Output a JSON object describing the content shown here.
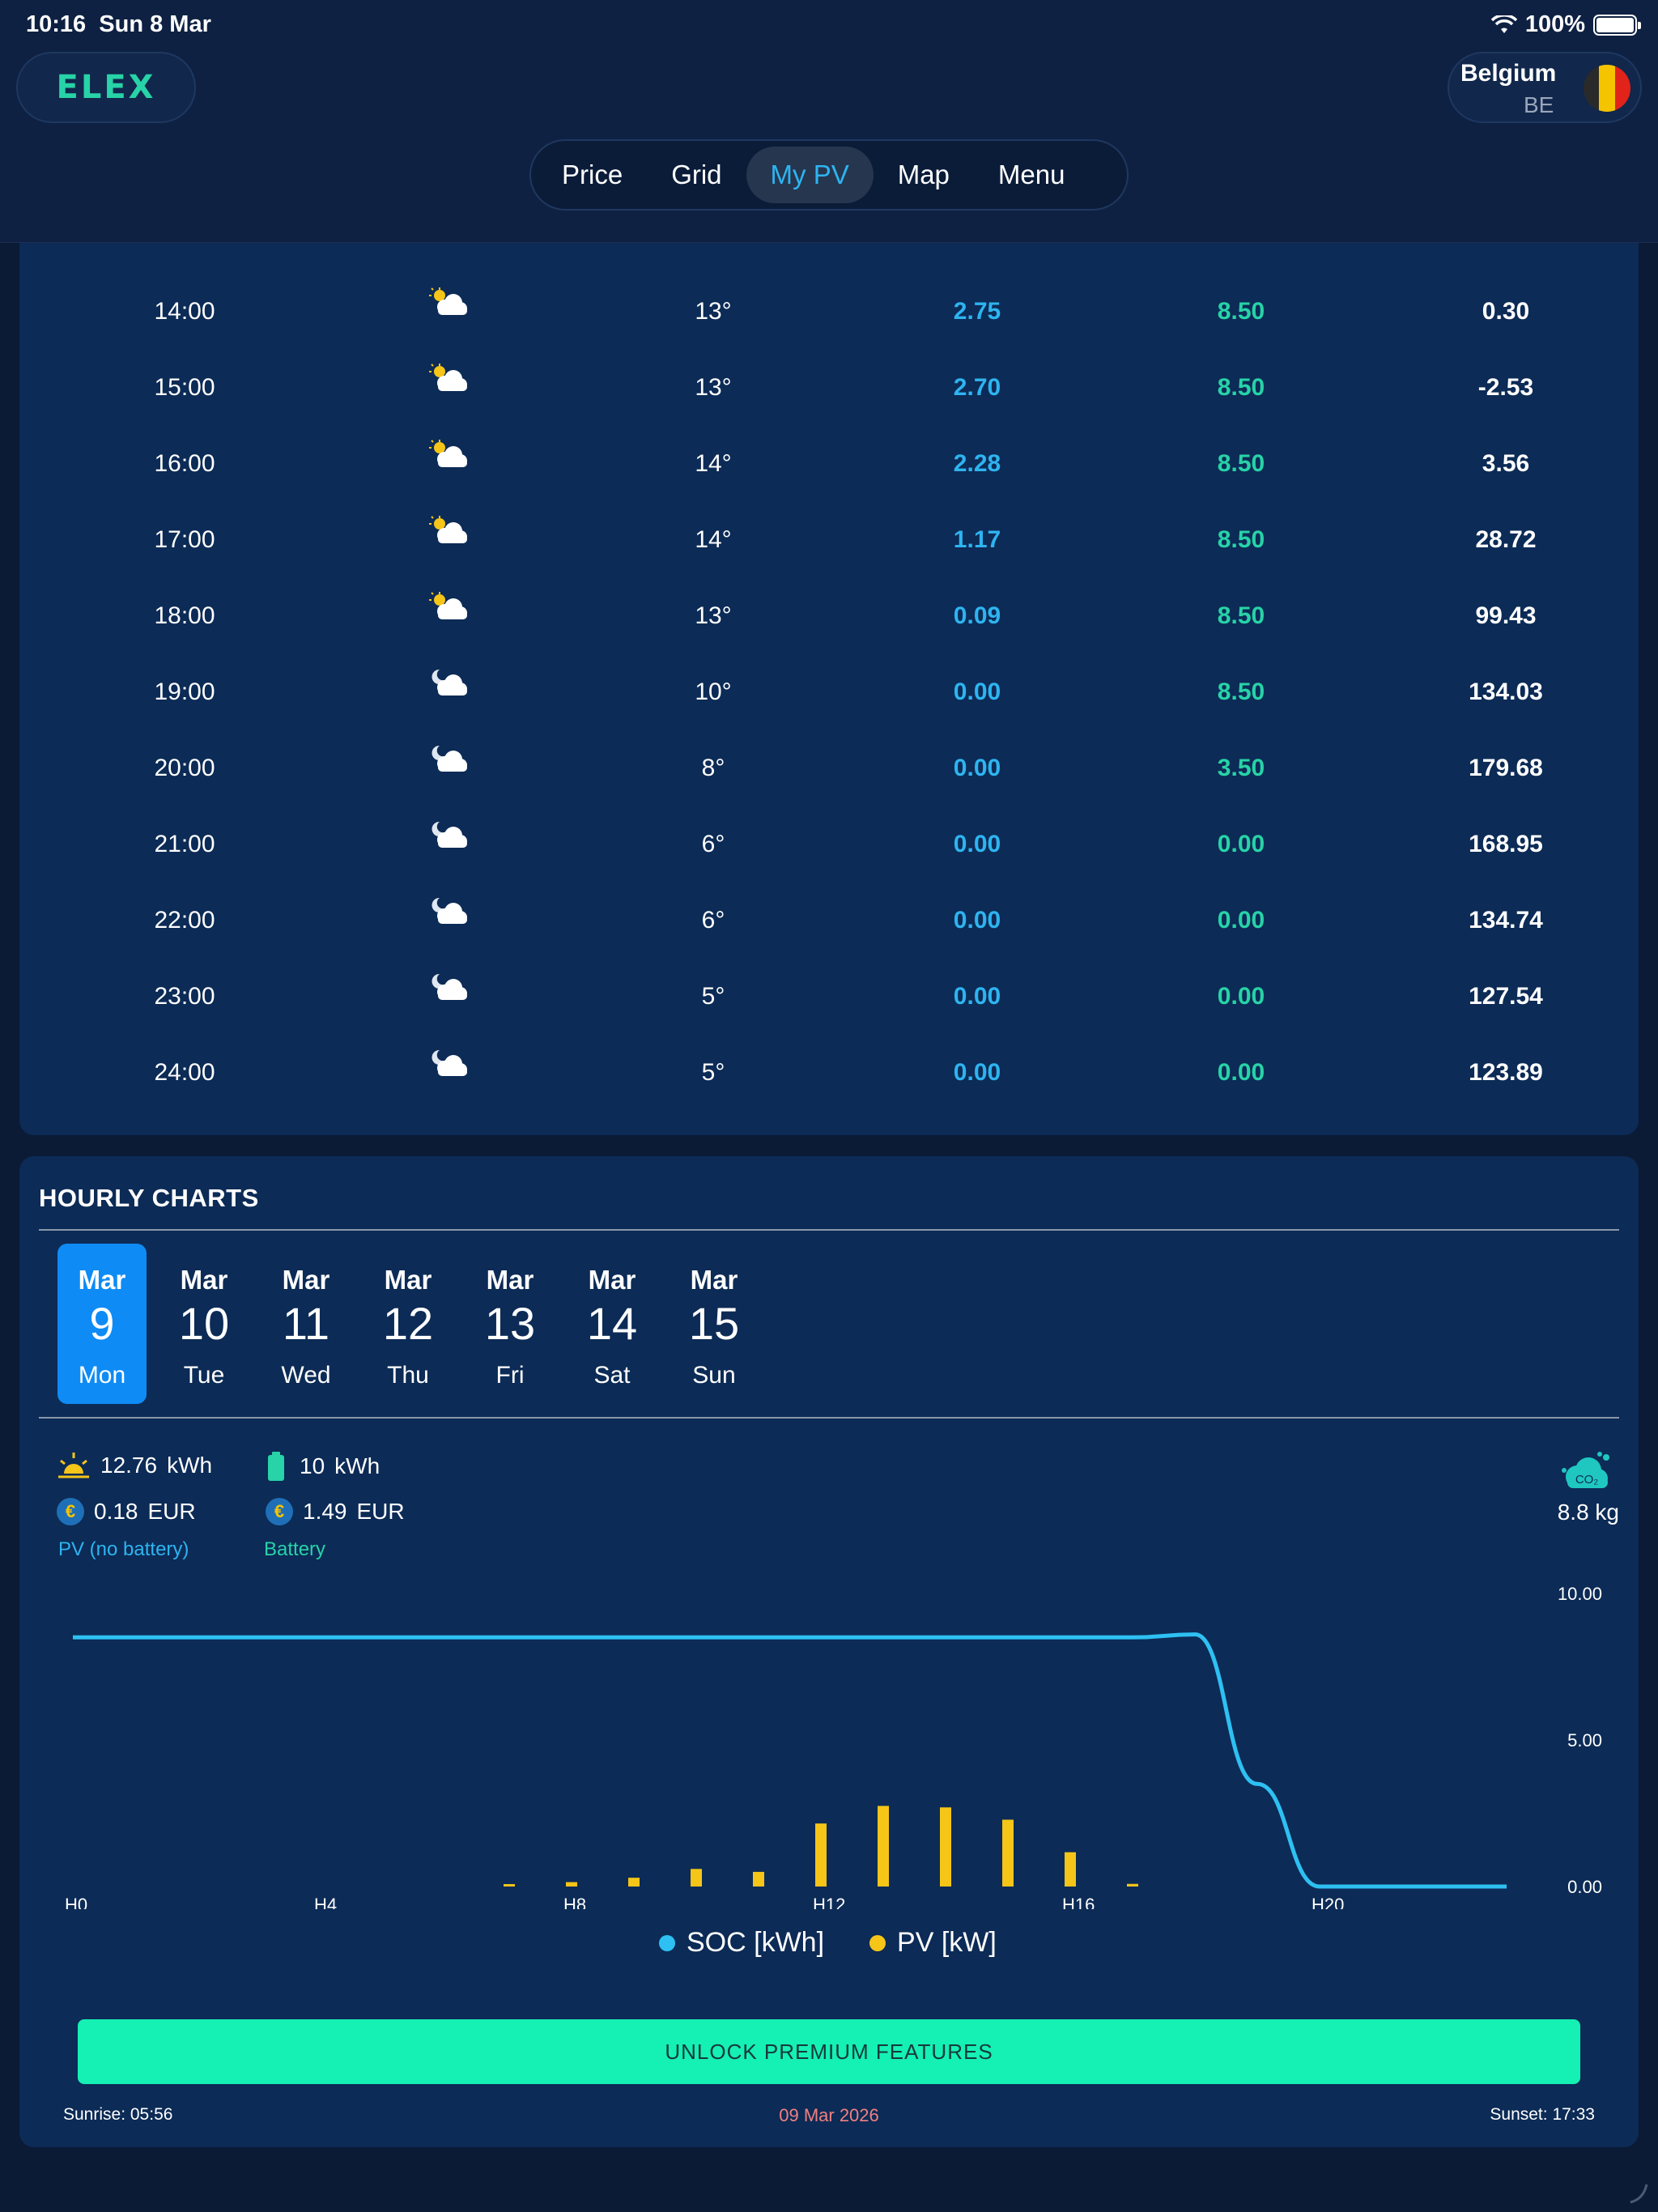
{
  "status": {
    "time": "10:16",
    "date": "Sun 8 Mar",
    "battery": "100%"
  },
  "header": {
    "logo": "ELEX",
    "country": {
      "name": "Belgium",
      "code": "BE"
    },
    "tabs": [
      {
        "label": "Price",
        "active": false
      },
      {
        "label": "Grid",
        "active": false
      },
      {
        "label": "My PV",
        "active": true
      },
      {
        "label": "Map",
        "active": false
      },
      {
        "label": "Menu",
        "active": false
      }
    ]
  },
  "hourly_table": {
    "rows": [
      {
        "time": "14:00",
        "icon": "sun-cloud-icon",
        "temp": "13°",
        "pv": "2.75",
        "battery": "8.50",
        "price": "0.30"
      },
      {
        "time": "15:00",
        "icon": "sun-cloud-icon",
        "temp": "13°",
        "pv": "2.70",
        "battery": "8.50",
        "price": "-2.53"
      },
      {
        "time": "16:00",
        "icon": "sun-cloud-icon",
        "temp": "14°",
        "pv": "2.28",
        "battery": "8.50",
        "price": "3.56"
      },
      {
        "time": "17:00",
        "icon": "sun-cloud-icon",
        "temp": "14°",
        "pv": "1.17",
        "battery": "8.50",
        "price": "28.72"
      },
      {
        "time": "18:00",
        "icon": "sun-cloud-icon",
        "temp": "13°",
        "pv": "0.09",
        "battery": "8.50",
        "price": "99.43"
      },
      {
        "time": "19:00",
        "icon": "moon-cloud-icon",
        "temp": "10°",
        "pv": "0.00",
        "battery": "8.50",
        "price": "134.03"
      },
      {
        "time": "20:00",
        "icon": "moon-cloud-icon",
        "temp": "8°",
        "pv": "0.00",
        "battery": "3.50",
        "price": "179.68"
      },
      {
        "time": "21:00",
        "icon": "moon-cloud-icon",
        "temp": "6°",
        "pv": "0.00",
        "battery": "0.00",
        "price": "168.95"
      },
      {
        "time": "22:00",
        "icon": "moon-cloud-icon",
        "temp": "6°",
        "pv": "0.00",
        "battery": "0.00",
        "price": "134.74"
      },
      {
        "time": "23:00",
        "icon": "moon-cloud-icon",
        "temp": "5°",
        "pv": "0.00",
        "battery": "0.00",
        "price": "127.54"
      },
      {
        "time": "24:00",
        "icon": "moon-cloud-icon",
        "temp": "5°",
        "pv": "0.00",
        "battery": "0.00",
        "price": "123.89"
      }
    ]
  },
  "charts": {
    "title": "HOURLY CHARTS",
    "days": [
      {
        "month": "Mar",
        "day": "9",
        "dow": "Mon",
        "active": true
      },
      {
        "month": "Mar",
        "day": "10",
        "dow": "Tue",
        "active": false
      },
      {
        "month": "Mar",
        "day": "11",
        "dow": "Wed",
        "active": false
      },
      {
        "month": "Mar",
        "day": "12",
        "dow": "Thu",
        "active": false
      },
      {
        "month": "Mar",
        "day": "13",
        "dow": "Fri",
        "active": false
      },
      {
        "month": "Mar",
        "day": "14",
        "dow": "Sat",
        "active": false
      },
      {
        "month": "Mar",
        "day": "15",
        "dow": "Sun",
        "active": false
      }
    ],
    "pv_energy": "12.76",
    "pv_energy_unit": "kWh",
    "pv_eur": "0.18",
    "pv_eur_unit": "EUR",
    "pv_label": "PV (no battery)",
    "battery_energy": "10",
    "battery_energy_unit": "kWh",
    "battery_eur": "1.49",
    "battery_eur_unit": "EUR",
    "battery_label": "Battery",
    "co2": "8.8 kg",
    "colors": {
      "soc": "#2ec0f2",
      "pv": "#f5c518",
      "pv_text": "#2eb4f0",
      "battery_text": "#27d3a7"
    }
  },
  "chart_data": {
    "type": "line",
    "x": [
      0,
      1,
      2,
      3,
      4,
      5,
      6,
      7,
      8,
      9,
      10,
      11,
      12,
      13,
      14,
      15,
      16,
      17,
      18,
      19,
      20,
      21,
      22,
      23
    ],
    "x_tick_labels": [
      "H0",
      "H4",
      "H8",
      "H12",
      "H16",
      "H20"
    ],
    "x_ticks": [
      0,
      4,
      8,
      12,
      16,
      20
    ],
    "y_tick_labels": [
      "10.00",
      "5.00",
      "0.00"
    ],
    "ylim": [
      0,
      10
    ],
    "grid": false,
    "legend_position": "bottom",
    "series": [
      {
        "name": "SOC [kWh]",
        "kind": "line",
        "color": "#2ec0f2",
        "values": [
          8.5,
          8.5,
          8.5,
          8.5,
          8.5,
          8.5,
          8.5,
          8.5,
          8.5,
          8.5,
          8.5,
          8.5,
          8.5,
          8.5,
          8.5,
          8.5,
          8.5,
          8.5,
          8.6,
          3.5,
          0.0,
          0.0,
          0.0,
          0.0
        ]
      },
      {
        "name": "PV [kW]",
        "kind": "bar",
        "color": "#f5c518",
        "values": [
          0,
          0,
          0,
          0,
          0,
          0,
          0,
          0.05,
          0.15,
          0.3,
          0.6,
          0.5,
          2.15,
          2.75,
          2.7,
          2.28,
          1.17,
          0.09,
          0,
          0,
          0,
          0,
          0,
          0
        ]
      }
    ]
  },
  "footer": {
    "premium": "UNLOCK PREMIUM FEATURES",
    "sunrise": "Sunrise:  05:56",
    "date": "09 Mar 2026",
    "sunset": "Sunset:  17:33"
  }
}
